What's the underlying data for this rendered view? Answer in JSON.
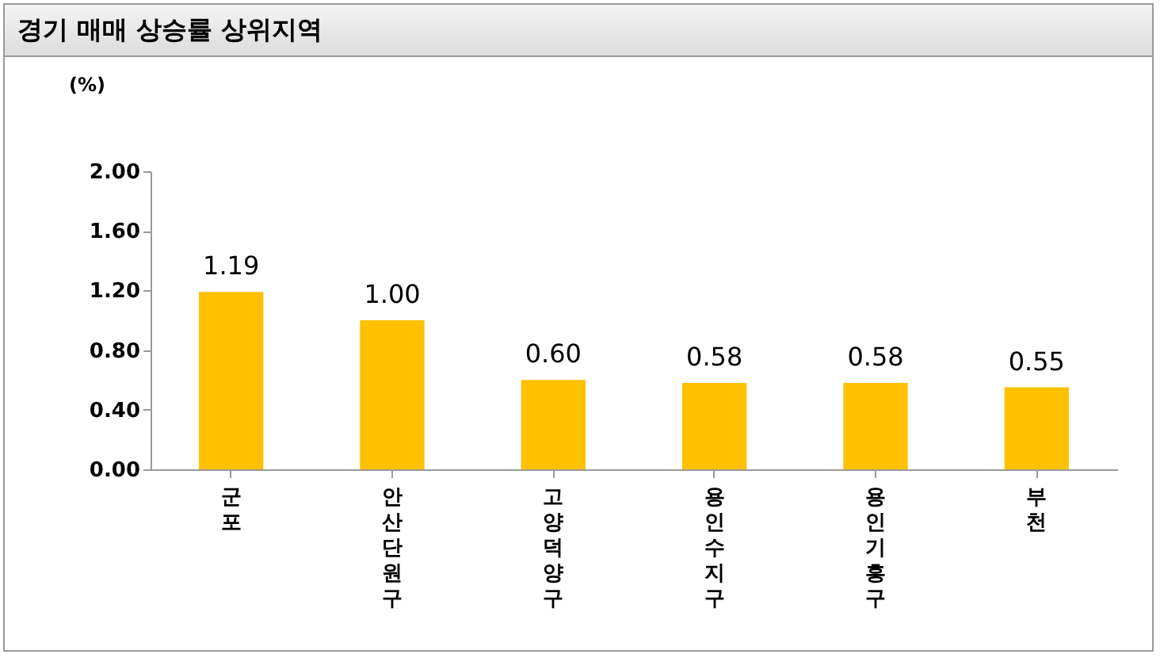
{
  "chart_data": {
    "type": "bar",
    "title": "경기 매매 상승률 상위지역",
    "ylabel": "(%)",
    "categories": [
      "군포",
      "안산단원구",
      "고양덕양구",
      "용인수지구",
      "용인기흥구",
      "부천"
    ],
    "values": [
      1.19,
      1.0,
      0.6,
      0.58,
      0.58,
      0.55
    ],
    "color": "#ffc000",
    "ylim": [
      0,
      2
    ],
    "yticks": [
      {
        "value": 0,
        "label": "0.00"
      },
      {
        "value": 0.4,
        "label": "0.40"
      },
      {
        "value": 0.8,
        "label": "0.80"
      },
      {
        "value": 1.2,
        "label": "1.20"
      },
      {
        "value": 1.6,
        "label": "1.60"
      },
      {
        "value": 2,
        "label": "2.00"
      }
    ],
    "value_labels": [
      "1.19",
      "1.00",
      "0.60",
      "0.58",
      "0.58",
      "0.55"
    ],
    "grid": false
  }
}
